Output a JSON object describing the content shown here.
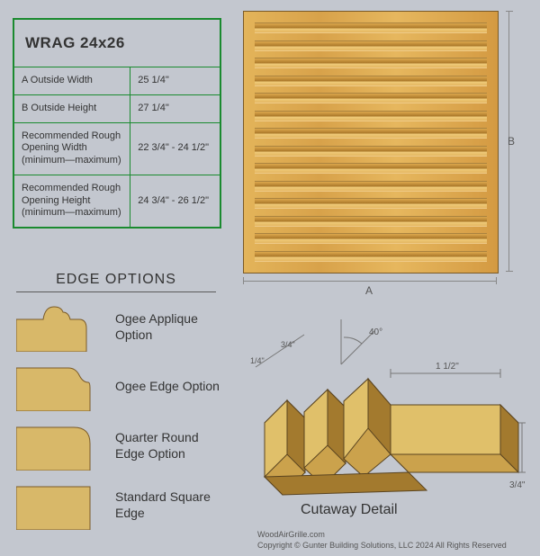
{
  "spec_table": {
    "title": "WRAG 24x26",
    "border_color": "#1a8a2f",
    "rows": [
      {
        "label": "A  Outside Width",
        "value": "25 1/4\""
      },
      {
        "label": "B  Outside Height",
        "value": "27 1/4\""
      },
      {
        "label": "Recommended Rough Opening Width (minimum—maximum)",
        "value": "22 3/4\" - 24 1/2\""
      },
      {
        "label": "Recommended Rough Opening Height (minimum—maximum)",
        "value": "24 3/4\" - 26 1/2\""
      }
    ]
  },
  "edge_options": {
    "title": "EDGE OPTIONS",
    "swatch_fill": "#d8b869",
    "swatch_stroke": "#7a5a28",
    "items": [
      {
        "label": "Ogee Applique Option",
        "profile": "ogee-applique"
      },
      {
        "label": "Ogee Edge Option",
        "profile": "ogee-edge"
      },
      {
        "label": "Quarter Round Edge Option",
        "profile": "quarter-round"
      },
      {
        "label": "Standard Square Edge",
        "profile": "square"
      }
    ]
  },
  "grille": {
    "louver_count": 14,
    "dim_width_letter": "A",
    "dim_height_letter": "B",
    "wood_gradient": [
      "#e3b45a",
      "#d8a24a",
      "#e6b75e",
      "#d49a42"
    ]
  },
  "cutaway": {
    "title": "Cutaway Detail",
    "angle_label": "40°",
    "dim_a": "1/4\"",
    "dim_b": "3/4\"",
    "dim_frame_width": "1 1/2\"",
    "dim_frame_depth": "3/4\"",
    "fill_light": "#e0c06a",
    "fill_mid": "#cba24c",
    "fill_dark": "#a37a2e",
    "stroke": "#5a4420"
  },
  "footer": {
    "site": "WoodAirGrille.com",
    "copyright": "Copyright ©  Gunter Building Solutions, LLC 2024 All Rights Reserved"
  },
  "dimension_line_color": "#888888"
}
